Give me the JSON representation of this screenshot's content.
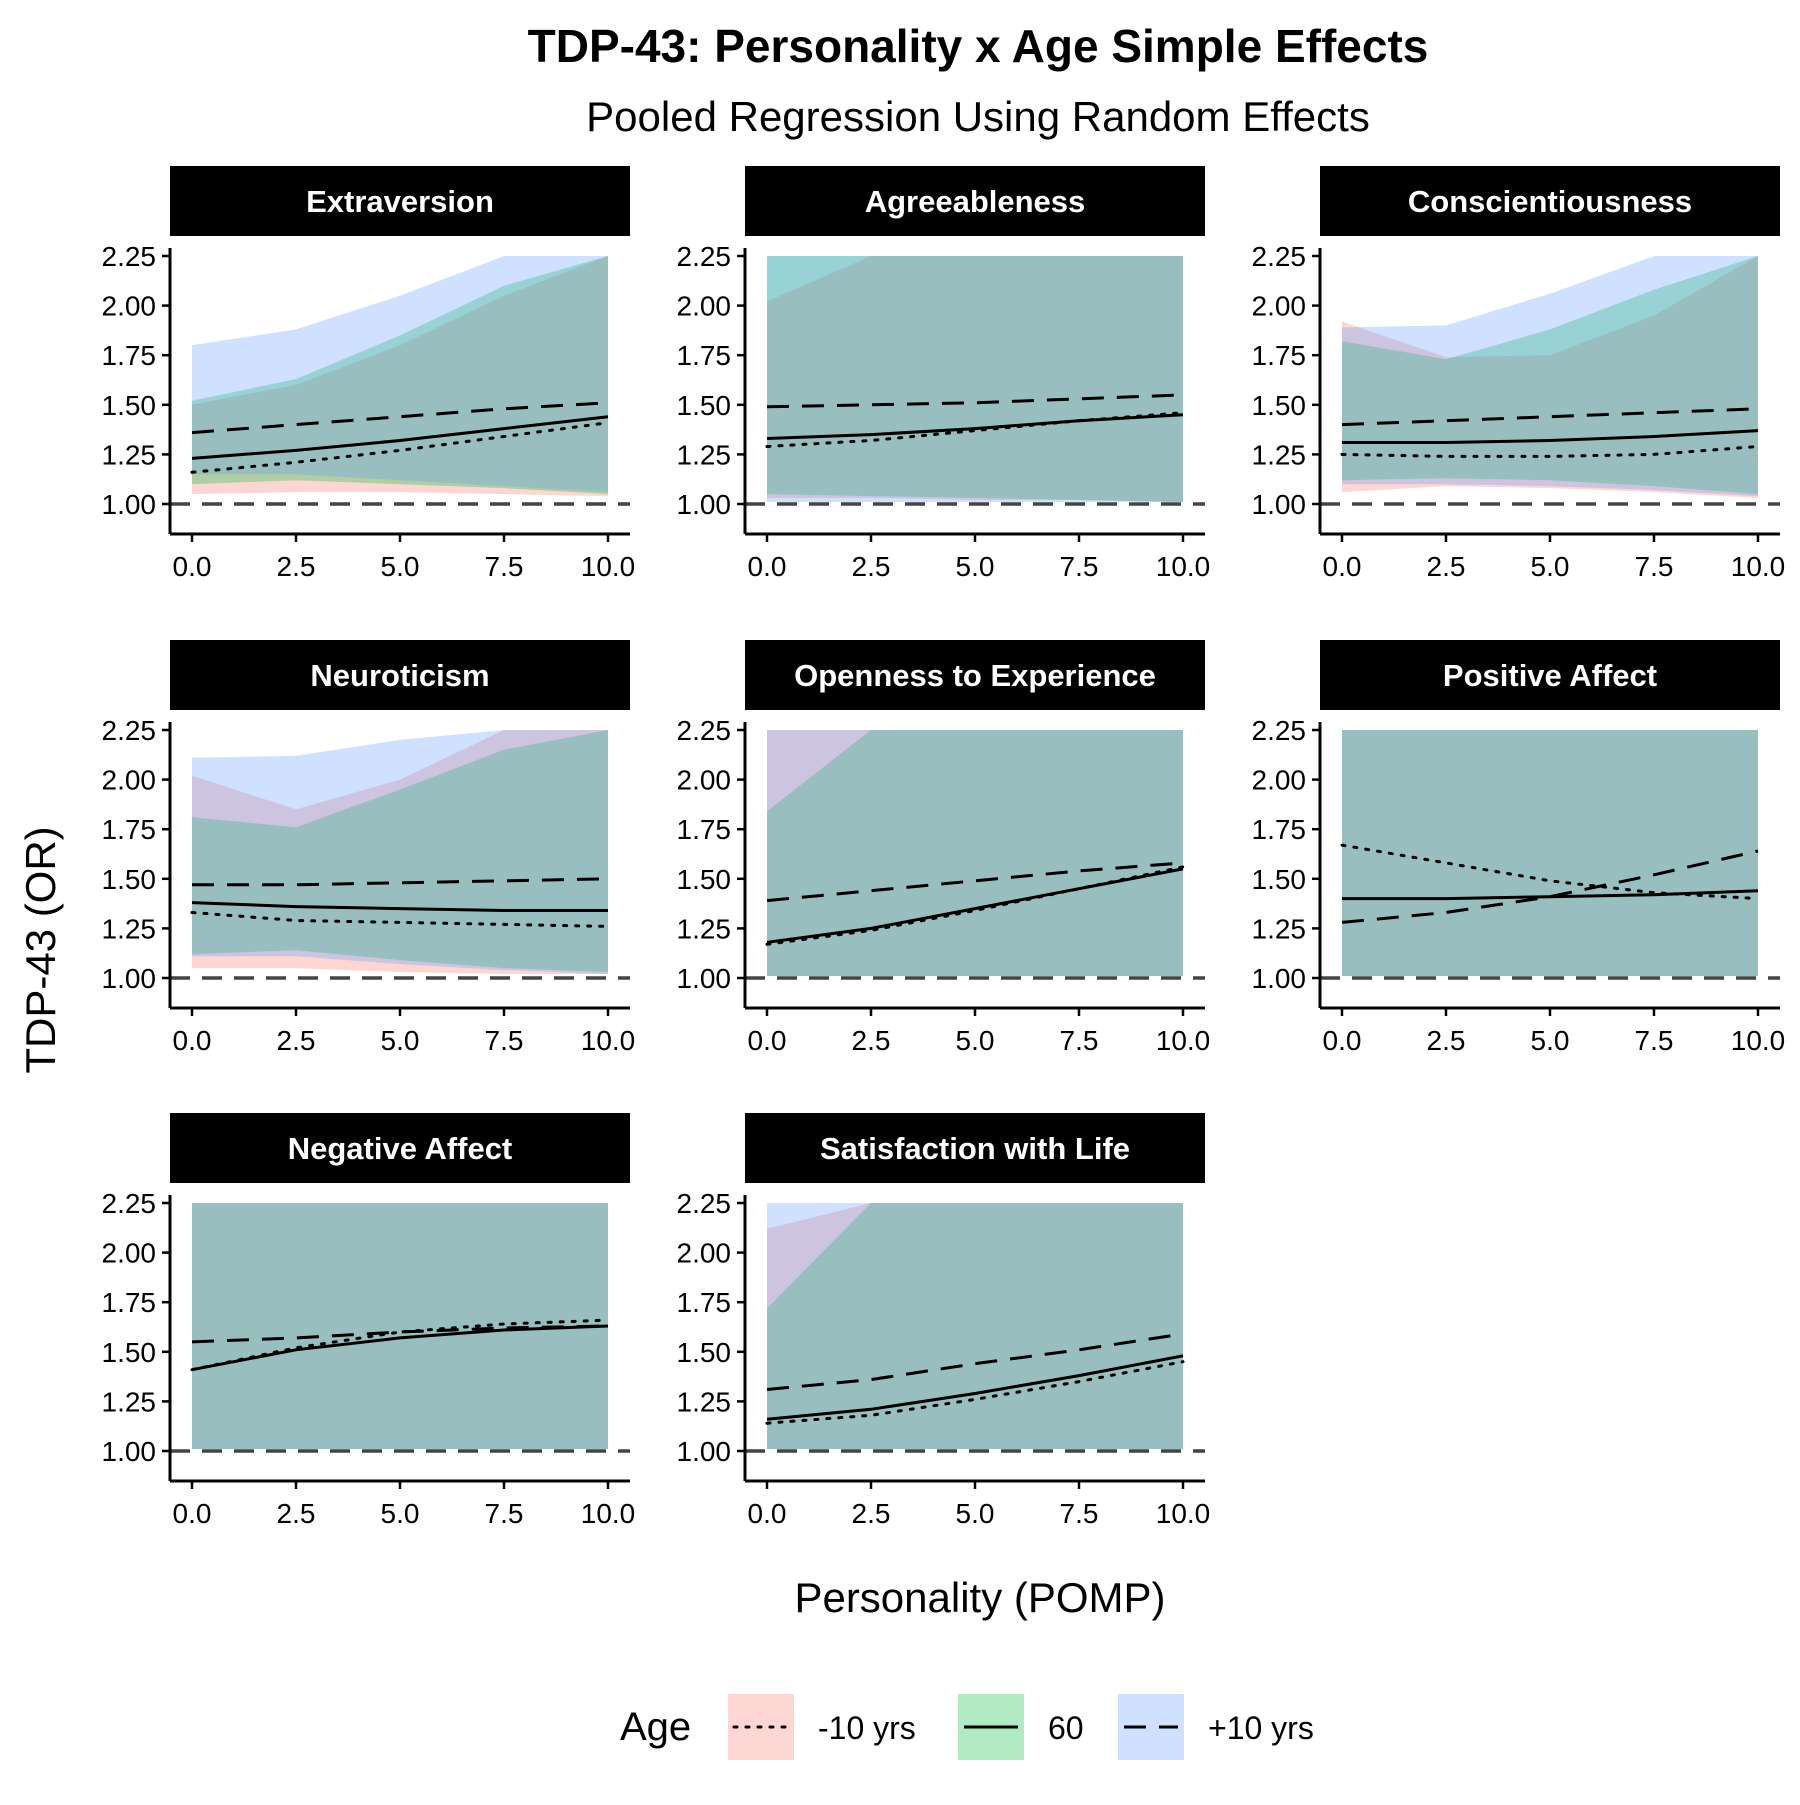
{
  "chart_data": {
    "type": "line",
    "title": "TDP-43: Personality x Age Simple Effects",
    "subtitle": "Pooled Regression Using Random Effects",
    "xlabel": "Personality (POMP)",
    "ylabel": "TDP-43 (OR)",
    "xlim": [
      0,
      10
    ],
    "ylim": [
      1,
      2.25
    ],
    "xticks": [
      "0.0",
      "2.5",
      "5.0",
      "7.5",
      "10.0"
    ],
    "yticks": [
      "1.00",
      "1.25",
      "1.50",
      "1.75",
      "2.00",
      "2.25"
    ],
    "x_values": [
      0,
      2.5,
      5,
      7.5,
      10
    ],
    "reference_line": 1,
    "legend": {
      "title": "Age",
      "placement": "bottom",
      "entries": [
        {
          "label": "-10 yrs",
          "fill": "#F8766D",
          "linetype": "dotted"
        },
        {
          "label": "60",
          "fill": "#00BA38",
          "linetype": "solid"
        },
        {
          "label": "+10 yrs",
          "fill": "#619CFF",
          "linetype": "dashed"
        }
      ]
    },
    "panels": [
      {
        "title": "Extraversion",
        "series": [
          {
            "name": "-10 yrs",
            "values": [
              1.16,
              1.21,
              1.27,
              1.34,
              1.41
            ],
            "lower": [
              1.05,
              1.06,
              1.06,
              1.05,
              1.04
            ],
            "upper": [
              1.5,
              1.6,
              1.8,
              2.05,
              2.25
            ]
          },
          {
            "name": "60",
            "values": [
              1.23,
              1.27,
              1.32,
              1.38,
              1.44
            ],
            "lower": [
              1.1,
              1.12,
              1.1,
              1.08,
              1.05
            ],
            "upper": [
              1.52,
              1.63,
              1.85,
              2.1,
              2.25
            ]
          },
          {
            "name": "+10 yrs",
            "values": [
              1.36,
              1.4,
              1.44,
              1.48,
              1.51
            ],
            "lower": [
              1.15,
              1.15,
              1.12,
              1.09,
              1.06
            ],
            "upper": [
              1.8,
              1.88,
              2.05,
              2.25,
              2.25
            ]
          }
        ]
      },
      {
        "title": "Agreeableness",
        "series": [
          {
            "name": "-10 yrs",
            "values": [
              1.29,
              1.32,
              1.37,
              1.42,
              1.46
            ],
            "lower": [
              1.03,
              1.03,
              1.02,
              1.02,
              1.01
            ],
            "upper": [
              2.02,
              2.25,
              2.25,
              2.25,
              2.25
            ]
          },
          {
            "name": "60",
            "values": [
              1.33,
              1.35,
              1.38,
              1.42,
              1.45
            ],
            "lower": [
              1.05,
              1.04,
              1.03,
              1.02,
              1.01
            ],
            "upper": [
              2.25,
              2.25,
              2.25,
              2.25,
              2.25
            ]
          },
          {
            "name": "+10 yrs",
            "values": [
              1.49,
              1.5,
              1.51,
              1.53,
              1.55
            ],
            "lower": [
              1.01,
              1.01,
              1.01,
              1.01,
              1.01
            ],
            "upper": [
              2.25,
              2.25,
              2.25,
              2.25,
              2.25
            ]
          }
        ]
      },
      {
        "title": "Conscientiousness",
        "series": [
          {
            "name": "-10 yrs",
            "values": [
              1.25,
              1.24,
              1.24,
              1.25,
              1.29
            ],
            "lower": [
              1.06,
              1.09,
              1.08,
              1.06,
              1.03
            ],
            "upper": [
              1.92,
              1.74,
              1.75,
              1.95,
              2.25
            ]
          },
          {
            "name": "60",
            "values": [
              1.31,
              1.31,
              1.32,
              1.34,
              1.37
            ],
            "lower": [
              1.12,
              1.13,
              1.12,
              1.09,
              1.05
            ],
            "upper": [
              1.82,
              1.73,
              1.88,
              2.08,
              2.25
            ]
          },
          {
            "name": "+10 yrs",
            "values": [
              1.4,
              1.42,
              1.44,
              1.46,
              1.48
            ],
            "lower": [
              1.1,
              1.1,
              1.09,
              1.07,
              1.04
            ],
            "upper": [
              1.89,
              1.9,
              2.06,
              2.25,
              2.25
            ]
          }
        ]
      },
      {
        "title": "Neuroticism",
        "series": [
          {
            "name": "-10 yrs",
            "values": [
              1.33,
              1.29,
              1.28,
              1.27,
              1.26
            ],
            "lower": [
              1.05,
              1.05,
              1.03,
              1.02,
              1.02
            ],
            "upper": [
              2.02,
              1.85,
              2.0,
              2.25,
              2.25
            ]
          },
          {
            "name": "60",
            "values": [
              1.38,
              1.36,
              1.35,
              1.34,
              1.34
            ],
            "lower": [
              1.12,
              1.14,
              1.09,
              1.05,
              1.03
            ],
            "upper": [
              1.81,
              1.76,
              1.95,
              2.15,
              2.25
            ]
          },
          {
            "name": "+10 yrs",
            "values": [
              1.47,
              1.47,
              1.48,
              1.49,
              1.5
            ],
            "lower": [
              1.11,
              1.11,
              1.07,
              1.04,
              1.02
            ],
            "upper": [
              2.11,
              2.12,
              2.2,
              2.25,
              2.25
            ]
          }
        ]
      },
      {
        "title": "Openness to Experience",
        "series": [
          {
            "name": "-10 yrs",
            "values": [
              1.17,
              1.24,
              1.34,
              1.45,
              1.56
            ],
            "lower": [
              1.01,
              1.01,
              1.01,
              1.01,
              1.01
            ],
            "upper": [
              2.25,
              2.25,
              2.25,
              2.25,
              2.25
            ]
          },
          {
            "name": "60",
            "values": [
              1.18,
              1.25,
              1.35,
              1.45,
              1.55
            ],
            "lower": [
              1.01,
              1.01,
              1.01,
              1.01,
              1.01
            ],
            "upper": [
              1.84,
              2.25,
              2.25,
              2.25,
              2.25
            ]
          },
          {
            "name": "+10 yrs",
            "values": [
              1.39,
              1.44,
              1.49,
              1.54,
              1.58
            ],
            "lower": [
              1.01,
              1.01,
              1.01,
              1.01,
              1.01
            ],
            "upper": [
              2.25,
              2.25,
              2.25,
              2.25,
              2.25
            ]
          }
        ]
      },
      {
        "title": "Positive Affect",
        "series": [
          {
            "name": "-10 yrs",
            "values": [
              1.67,
              1.58,
              1.49,
              1.43,
              1.4
            ],
            "lower": [
              1.01,
              1.01,
              1.01,
              1.01,
              1.01
            ],
            "upper": [
              2.25,
              2.25,
              2.25,
              2.25,
              2.25
            ]
          },
          {
            "name": "60",
            "values": [
              1.4,
              1.4,
              1.41,
              1.42,
              1.44
            ],
            "lower": [
              1.01,
              1.01,
              1.01,
              1.01,
              1.01
            ],
            "upper": [
              2.25,
              2.25,
              2.25,
              2.25,
              2.25
            ]
          },
          {
            "name": "+10 yrs",
            "values": [
              1.28,
              1.33,
              1.41,
              1.52,
              1.64
            ],
            "lower": [
              1.01,
              1.01,
              1.01,
              1.01,
              1.01
            ],
            "upper": [
              2.25,
              2.25,
              2.25,
              2.25,
              2.25
            ]
          }
        ]
      },
      {
        "title": "Negative Affect",
        "series": [
          {
            "name": "-10 yrs",
            "values": [
              1.41,
              1.52,
              1.6,
              1.64,
              1.66
            ],
            "lower": [
              1.01,
              1.01,
              1.01,
              1.01,
              1.01
            ],
            "upper": [
              2.25,
              2.25,
              2.25,
              2.25,
              2.25
            ]
          },
          {
            "name": "60",
            "values": [
              1.41,
              1.51,
              1.57,
              1.61,
              1.63
            ],
            "lower": [
              1.01,
              1.01,
              1.01,
              1.01,
              1.01
            ],
            "upper": [
              2.25,
              2.25,
              2.25,
              2.25,
              2.25
            ]
          },
          {
            "name": "+10 yrs",
            "values": [
              1.55,
              1.57,
              1.6,
              1.62,
              1.63
            ],
            "lower": [
              1.01,
              1.01,
              1.01,
              1.01,
              1.01
            ],
            "upper": [
              2.25,
              2.25,
              2.25,
              2.25,
              2.25
            ]
          }
        ]
      },
      {
        "title": "Satisfaction with Life",
        "series": [
          {
            "name": "-10 yrs",
            "values": [
              1.14,
              1.18,
              1.26,
              1.35,
              1.45
            ],
            "lower": [
              1.01,
              1.01,
              1.01,
              1.01,
              1.01
            ],
            "upper": [
              2.12,
              2.25,
              2.25,
              2.25,
              2.25
            ]
          },
          {
            "name": "60",
            "values": [
              1.16,
              1.21,
              1.29,
              1.38,
              1.48
            ],
            "lower": [
              1.01,
              1.01,
              1.01,
              1.01,
              1.01
            ],
            "upper": [
              1.72,
              2.25,
              2.25,
              2.25,
              2.25
            ]
          },
          {
            "name": "+10 yrs",
            "values": [
              1.31,
              1.36,
              1.44,
              1.51,
              1.59
            ],
            "lower": [
              1.01,
              1.01,
              1.01,
              1.01,
              1.01
            ],
            "upper": [
              2.25,
              2.25,
              2.25,
              2.25,
              2.25
            ]
          }
        ]
      }
    ]
  },
  "colors": {
    "strip_background": "#000000",
    "strip_text": "#ffffff",
    "ribbon_overlap": "#A5B8BC",
    "reference_line": "#444444"
  }
}
